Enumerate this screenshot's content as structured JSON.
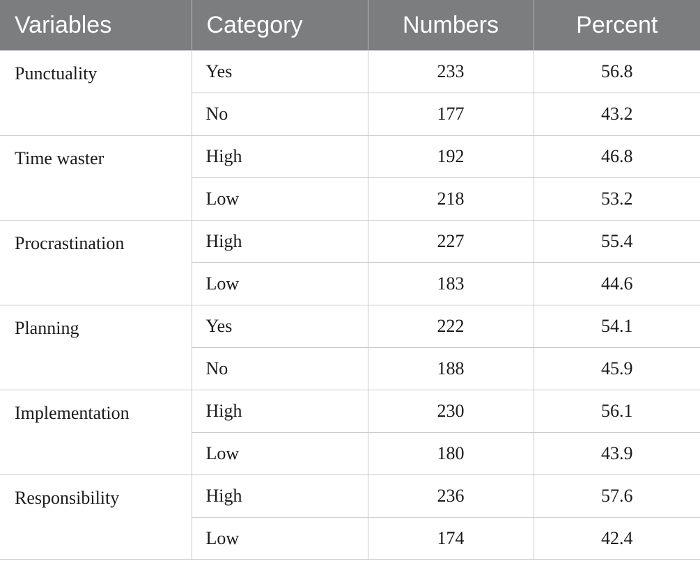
{
  "table": {
    "headers": [
      "Variables",
      "Category",
      "Numbers",
      "Percent"
    ],
    "groups": [
      {
        "variable": "Punctuality",
        "rows": [
          {
            "category": "Yes",
            "numbers": "233",
            "percent": "56.8"
          },
          {
            "category": "No",
            "numbers": "177",
            "percent": "43.2"
          }
        ]
      },
      {
        "variable": "Time waster",
        "rows": [
          {
            "category": "High",
            "numbers": "192",
            "percent": "46.8"
          },
          {
            "category": "Low",
            "numbers": "218",
            "percent": "53.2"
          }
        ]
      },
      {
        "variable": "Procrastination",
        "rows": [
          {
            "category": "High",
            "numbers": "227",
            "percent": "55.4"
          },
          {
            "category": "Low",
            "numbers": "183",
            "percent": "44.6"
          }
        ]
      },
      {
        "variable": "Planning",
        "rows": [
          {
            "category": "Yes",
            "numbers": "222",
            "percent": "54.1"
          },
          {
            "category": "No",
            "numbers": "188",
            "percent": "45.9"
          }
        ]
      },
      {
        "variable": "Implementation",
        "rows": [
          {
            "category": "High",
            "numbers": "230",
            "percent": "56.1"
          },
          {
            "category": "Low",
            "numbers": "180",
            "percent": "43.9"
          }
        ]
      },
      {
        "variable": "Responsibility",
        "rows": [
          {
            "category": "High",
            "numbers": "236",
            "percent": "57.6"
          },
          {
            "category": "Low",
            "numbers": "174",
            "percent": "42.4"
          }
        ]
      }
    ]
  }
}
